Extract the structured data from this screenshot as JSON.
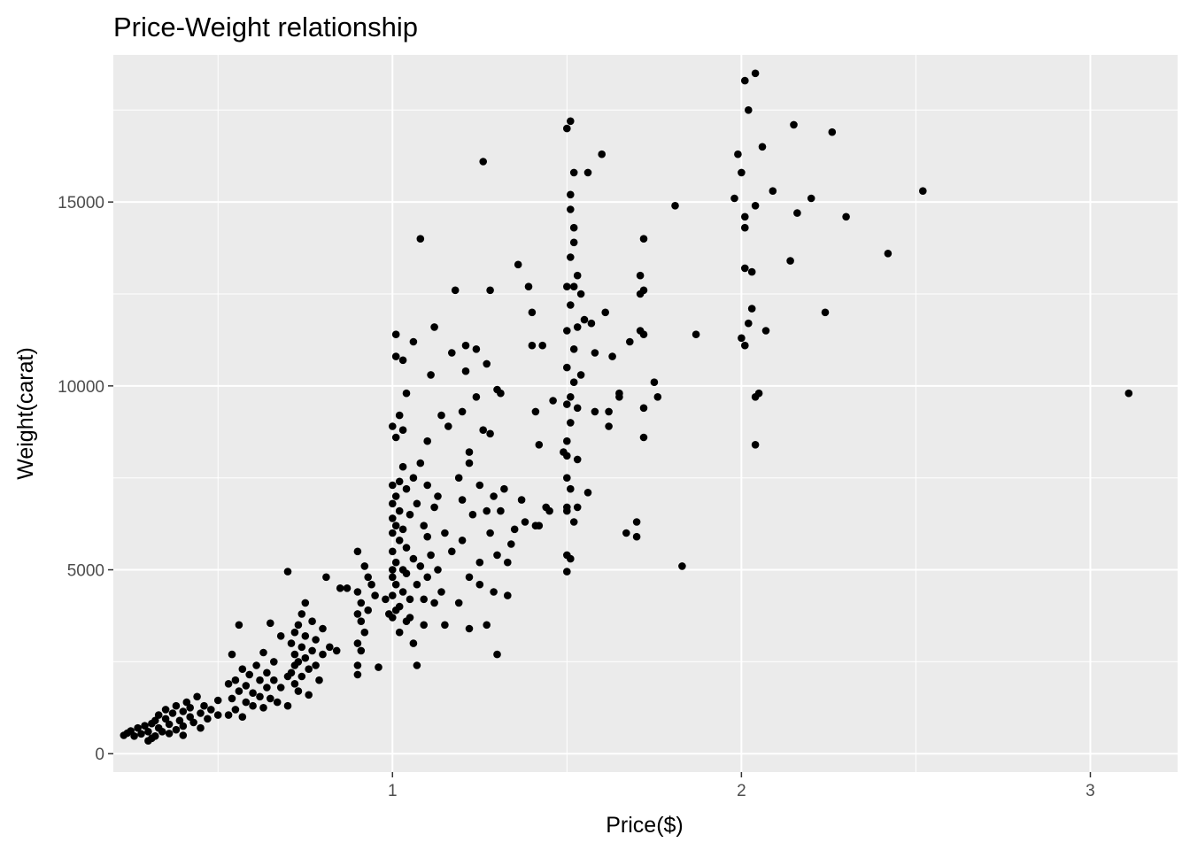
{
  "chart_data": {
    "type": "scatter",
    "title": "Price-Weight relationship",
    "xlabel": "Price($)",
    "ylabel": "Weight(carat)",
    "xlim": [
      0.2,
      3.25
    ],
    "ylim": [
      -500,
      19000
    ],
    "x_ticks": [
      1,
      2,
      3
    ],
    "x_tick_labels": [
      "1",
      "2",
      "3"
    ],
    "y_ticks": [
      0,
      5000,
      10000,
      15000
    ],
    "y_tick_labels": [
      "0",
      "5000",
      "10000",
      "15000"
    ],
    "grid": true,
    "legend": "none",
    "colors": {
      "panel": "#ebebeb",
      "grid": "#ffffff",
      "point": "#000000"
    },
    "points": [
      [
        0.23,
        500
      ],
      [
        0.24,
        560
      ],
      [
        0.25,
        620
      ],
      [
        0.26,
        480
      ],
      [
        0.27,
        700
      ],
      [
        0.28,
        540
      ],
      [
        0.29,
        760
      ],
      [
        0.3,
        600
      ],
      [
        0.31,
        820
      ],
      [
        0.31,
        420
      ],
      [
        0.32,
        900
      ],
      [
        0.33,
        700
      ],
      [
        0.33,
        1050
      ],
      [
        0.34,
        600
      ],
      [
        0.35,
        950
      ],
      [
        0.35,
        1200
      ],
      [
        0.36,
        800
      ],
      [
        0.37,
        1100
      ],
      [
        0.38,
        650
      ],
      [
        0.38,
        1300
      ],
      [
        0.39,
        900
      ],
      [
        0.4,
        1150
      ],
      [
        0.4,
        750
      ],
      [
        0.41,
        1400
      ],
      [
        0.42,
        1000
      ],
      [
        0.42,
        1250
      ],
      [
        0.43,
        850
      ],
      [
        0.44,
        1550
      ],
      [
        0.45,
        1100
      ],
      [
        0.46,
        1300
      ],
      [
        0.47,
        950
      ],
      [
        0.48,
        1200
      ],
      [
        0.5,
        1050
      ],
      [
        0.5,
        1450
      ],
      [
        0.3,
        350
      ],
      [
        0.32,
        480
      ],
      [
        0.36,
        550
      ],
      [
        0.4,
        500
      ],
      [
        0.45,
        700
      ],
      [
        0.53,
        1050
      ],
      [
        0.53,
        1900
      ],
      [
        0.54,
        1500
      ],
      [
        0.54,
        2700
      ],
      [
        0.55,
        1200
      ],
      [
        0.55,
        2000
      ],
      [
        0.56,
        1700
      ],
      [
        0.56,
        3500
      ],
      [
        0.57,
        1000
      ],
      [
        0.57,
        2300
      ],
      [
        0.58,
        1400
      ],
      [
        0.58,
        1850
      ],
      [
        0.59,
        2150
      ],
      [
        0.6,
        1300
      ],
      [
        0.6,
        1650
      ],
      [
        0.61,
        2400
      ],
      [
        0.62,
        1550
      ],
      [
        0.62,
        2000
      ],
      [
        0.63,
        1250
      ],
      [
        0.63,
        2750
      ],
      [
        0.64,
        1800
      ],
      [
        0.64,
        2200
      ],
      [
        0.65,
        1500
      ],
      [
        0.65,
        3550
      ],
      [
        0.66,
        2000
      ],
      [
        0.66,
        2500
      ],
      [
        0.67,
        1400
      ],
      [
        0.68,
        1800
      ],
      [
        0.68,
        3200
      ],
      [
        0.7,
        2100
      ],
      [
        0.7,
        1300
      ],
      [
        0.72,
        2400
      ],
      [
        0.7,
        4950
      ],
      [
        0.71,
        2200
      ],
      [
        0.71,
        3000
      ],
      [
        0.72,
        3300
      ],
      [
        0.72,
        2700
      ],
      [
        0.72,
        1900
      ],
      [
        0.73,
        2500
      ],
      [
        0.73,
        3500
      ],
      [
        0.73,
        1700
      ],
      [
        0.74,
        2900
      ],
      [
        0.74,
        3800
      ],
      [
        0.74,
        2100
      ],
      [
        0.75,
        2600
      ],
      [
        0.75,
        3200
      ],
      [
        0.75,
        4100
      ],
      [
        0.76,
        2300
      ],
      [
        0.76,
        1600
      ],
      [
        0.77,
        2800
      ],
      [
        0.77,
        3600
      ],
      [
        0.78,
        2400
      ],
      [
        0.78,
        3100
      ],
      [
        0.79,
        2000
      ],
      [
        0.8,
        2700
      ],
      [
        0.8,
        3400
      ],
      [
        0.81,
        4800
      ],
      [
        0.82,
        2900
      ],
      [
        0.84,
        2800
      ],
      [
        0.85,
        4500
      ],
      [
        0.87,
        4500
      ],
      [
        0.9,
        3000
      ],
      [
        0.9,
        3800
      ],
      [
        0.9,
        4400
      ],
      [
        0.9,
        2400
      ],
      [
        0.9,
        5500
      ],
      [
        0.9,
        2150
      ],
      [
        0.91,
        3600
      ],
      [
        0.91,
        4100
      ],
      [
        0.91,
        2800
      ],
      [
        0.92,
        5100
      ],
      [
        0.92,
        3300
      ],
      [
        0.93,
        3900
      ],
      [
        0.93,
        4800
      ],
      [
        0.94,
        4600
      ],
      [
        0.95,
        4300
      ],
      [
        0.96,
        2350
      ],
      [
        0.98,
        4200
      ],
      [
        0.99,
        3800
      ],
      [
        1.0,
        5000
      ],
      [
        1.0,
        3700
      ],
      [
        1.0,
        4300
      ],
      [
        1.0,
        5500
      ],
      [
        1.0,
        6400
      ],
      [
        1.0,
        7300
      ],
      [
        1.0,
        8900
      ],
      [
        1.0,
        6000
      ],
      [
        1.0,
        6800
      ],
      [
        1.0,
        4800
      ],
      [
        1.01,
        3900
      ],
      [
        1.01,
        5200
      ],
      [
        1.01,
        7000
      ],
      [
        1.01,
        8600
      ],
      [
        1.01,
        10800
      ],
      [
        1.01,
        11400
      ],
      [
        1.01,
        4600
      ],
      [
        1.01,
        6200
      ],
      [
        1.02,
        4000
      ],
      [
        1.02,
        5800
      ],
      [
        1.02,
        6600
      ],
      [
        1.02,
        9200
      ],
      [
        1.02,
        3300
      ],
      [
        1.02,
        7400
      ],
      [
        1.03,
        4400
      ],
      [
        1.03,
        5000
      ],
      [
        1.03,
        6100
      ],
      [
        1.03,
        8800
      ],
      [
        1.03,
        10700
      ],
      [
        1.03,
        7800
      ],
      [
        1.04,
        3600
      ],
      [
        1.04,
        4900
      ],
      [
        1.04,
        5600
      ],
      [
        1.04,
        7200
      ],
      [
        1.04,
        9800
      ],
      [
        1.05,
        4200
      ],
      [
        1.05,
        6500
      ],
      [
        1.05,
        3700
      ],
      [
        1.06,
        5300
      ],
      [
        1.06,
        7500
      ],
      [
        1.06,
        11200
      ],
      [
        1.06,
        3000
      ],
      [
        1.07,
        4600
      ],
      [
        1.07,
        6800
      ],
      [
        1.07,
        2400
      ],
      [
        1.08,
        5100
      ],
      [
        1.08,
        7900
      ],
      [
        1.08,
        14000
      ],
      [
        1.09,
        4200
      ],
      [
        1.09,
        6200
      ],
      [
        1.09,
        3500
      ],
      [
        1.1,
        5900
      ],
      [
        1.1,
        7300
      ],
      [
        1.1,
        4800
      ],
      [
        1.1,
        8500
      ],
      [
        1.11,
        10300
      ],
      [
        1.11,
        5400
      ],
      [
        1.12,
        4100
      ],
      [
        1.12,
        6700
      ],
      [
        1.12,
        11600
      ],
      [
        1.13,
        5000
      ],
      [
        1.13,
        7000
      ],
      [
        1.14,
        4400
      ],
      [
        1.14,
        9200
      ],
      [
        1.15,
        6000
      ],
      [
        1.15,
        3500
      ],
      [
        1.16,
        8900
      ],
      [
        1.17,
        5500
      ],
      [
        1.17,
        10900
      ],
      [
        1.18,
        12600
      ],
      [
        1.19,
        4100
      ],
      [
        1.19,
        7500
      ],
      [
        1.2,
        9300
      ],
      [
        1.2,
        5800
      ],
      [
        1.2,
        6900
      ],
      [
        1.21,
        11100
      ],
      [
        1.21,
        10400
      ],
      [
        1.22,
        4800
      ],
      [
        1.22,
        7900
      ],
      [
        1.22,
        8200
      ],
      [
        1.22,
        3400
      ],
      [
        1.23,
        6500
      ],
      [
        1.24,
        11000
      ],
      [
        1.24,
        9700
      ],
      [
        1.25,
        5200
      ],
      [
        1.25,
        7300
      ],
      [
        1.25,
        4600
      ],
      [
        1.26,
        8800
      ],
      [
        1.26,
        16100
      ],
      [
        1.27,
        6600
      ],
      [
        1.27,
        3500
      ],
      [
        1.27,
        10600
      ],
      [
        1.28,
        12600
      ],
      [
        1.28,
        8700
      ],
      [
        1.28,
        6000
      ],
      [
        1.29,
        4400
      ],
      [
        1.29,
        7000
      ],
      [
        1.3,
        2700
      ],
      [
        1.3,
        9900
      ],
      [
        1.3,
        5400
      ],
      [
        1.31,
        6600
      ],
      [
        1.31,
        9800
      ],
      [
        1.32,
        7200
      ],
      [
        1.33,
        4300
      ],
      [
        1.33,
        5200
      ],
      [
        1.34,
        5700
      ],
      [
        1.35,
        6100
      ],
      [
        1.36,
        13300
      ],
      [
        1.37,
        6900
      ],
      [
        1.38,
        6300
      ],
      [
        1.39,
        12700
      ],
      [
        1.4,
        11100
      ],
      [
        1.4,
        12000
      ],
      [
        1.41,
        9300
      ],
      [
        1.41,
        6200
      ],
      [
        1.42,
        8400
      ],
      [
        1.42,
        6200
      ],
      [
        1.43,
        11100
      ],
      [
        1.44,
        6700
      ],
      [
        1.45,
        6600
      ],
      [
        1.46,
        9600
      ],
      [
        1.49,
        8200
      ],
      [
        1.5,
        8100
      ],
      [
        1.5,
        6600
      ],
      [
        1.51,
        9000
      ],
      [
        1.52,
        6300
      ],
      [
        1.53,
        8000
      ],
      [
        1.5,
        4950
      ],
      [
        1.5,
        5400
      ],
      [
        1.5,
        6700
      ],
      [
        1.5,
        7500
      ],
      [
        1.5,
        8500
      ],
      [
        1.5,
        9500
      ],
      [
        1.5,
        10500
      ],
      [
        1.5,
        11500
      ],
      [
        1.5,
        12700
      ],
      [
        1.5,
        17000
      ],
      [
        1.51,
        17200
      ],
      [
        1.51,
        9700
      ],
      [
        1.51,
        7200
      ],
      [
        1.51,
        5300
      ],
      [
        1.51,
        12200
      ],
      [
        1.51,
        13500
      ],
      [
        1.51,
        15200
      ],
      [
        1.51,
        14800
      ],
      [
        1.52,
        13900
      ],
      [
        1.52,
        11000
      ],
      [
        1.52,
        14300
      ],
      [
        1.52,
        12700
      ],
      [
        1.52,
        10100
      ],
      [
        1.52,
        15800
      ],
      [
        1.53,
        11600
      ],
      [
        1.53,
        9400
      ],
      [
        1.53,
        6700
      ],
      [
        1.53,
        13000
      ],
      [
        1.54,
        12500
      ],
      [
        1.54,
        10300
      ],
      [
        1.55,
        11800
      ],
      [
        1.56,
        7100
      ],
      [
        1.56,
        15800
      ],
      [
        1.57,
        11700
      ],
      [
        1.58,
        10900
      ],
      [
        1.58,
        9300
      ],
      [
        1.6,
        16300
      ],
      [
        1.61,
        12000
      ],
      [
        1.62,
        9300
      ],
      [
        1.62,
        8900
      ],
      [
        1.63,
        10800
      ],
      [
        1.65,
        9700
      ],
      [
        1.65,
        9800
      ],
      [
        1.67,
        6000
      ],
      [
        1.68,
        11200
      ],
      [
        1.7,
        5900
      ],
      [
        1.7,
        6300
      ],
      [
        1.71,
        11500
      ],
      [
        1.71,
        12500
      ],
      [
        1.71,
        13000
      ],
      [
        1.72,
        12600
      ],
      [
        1.72,
        8600
      ],
      [
        1.72,
        9400
      ],
      [
        1.72,
        11400
      ],
      [
        1.72,
        14000
      ],
      [
        1.75,
        10100
      ],
      [
        1.76,
        9700
      ],
      [
        1.81,
        14900
      ],
      [
        1.83,
        5100
      ],
      [
        1.87,
        11400
      ],
      [
        1.98,
        15100
      ],
      [
        1.99,
        16300
      ],
      [
        2.0,
        11300
      ],
      [
        2.0,
        15800
      ],
      [
        2.01,
        14300
      ],
      [
        2.01,
        18300
      ],
      [
        2.01,
        11100
      ],
      [
        2.01,
        14600
      ],
      [
        2.01,
        13200
      ],
      [
        2.02,
        17500
      ],
      [
        2.02,
        11700
      ],
      [
        2.03,
        13100
      ],
      [
        2.03,
        12100
      ],
      [
        2.04,
        18500
      ],
      [
        2.04,
        14900
      ],
      [
        2.04,
        9700
      ],
      [
        2.04,
        8400
      ],
      [
        2.05,
        9800
      ],
      [
        2.06,
        16500
      ],
      [
        2.07,
        11500
      ],
      [
        2.09,
        15300
      ],
      [
        2.14,
        13400
      ],
      [
        2.15,
        17100
      ],
      [
        2.16,
        14700
      ],
      [
        2.2,
        15100
      ],
      [
        2.24,
        12000
      ],
      [
        2.26,
        16900
      ],
      [
        2.3,
        14600
      ],
      [
        2.42,
        13600
      ],
      [
        2.52,
        15300
      ],
      [
        3.11,
        9800
      ]
    ]
  }
}
